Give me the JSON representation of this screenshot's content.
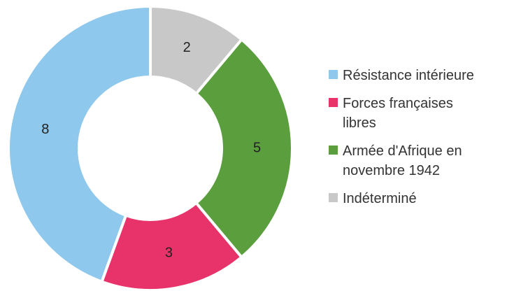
{
  "chart_data": {
    "type": "donut",
    "categories": [
      "Résistance intérieure",
      "Forces françaises libres",
      "Armée d'Afrique en novembre 1942",
      "Indéterminé"
    ],
    "values": [
      8,
      3,
      5,
      2
    ],
    "colors": [
      "#8ec8ec",
      "#e8336a",
      "#5a9e3e",
      "#c8c8c8"
    ],
    "legend": "right"
  }
}
